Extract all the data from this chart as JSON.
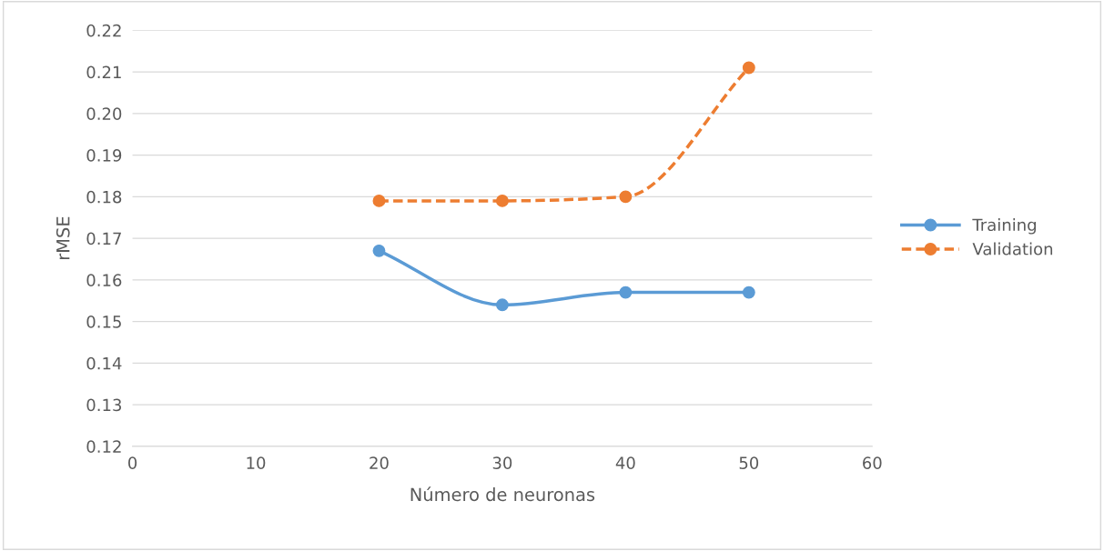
{
  "chart_data": {
    "type": "line",
    "xlabel": "Número de neuronas",
    "ylabel": "rMSE",
    "x": [
      20,
      30,
      40,
      50
    ],
    "series": [
      {
        "name": "Training",
        "color": "#5b9bd5",
        "values": [
          0.167,
          0.154,
          0.157,
          0.157
        ],
        "line_style": "solid"
      },
      {
        "name": "Validation",
        "color": "#ed7d31",
        "values": [
          0.179,
          0.179,
          0.18,
          0.211
        ],
        "line_style": "dashed"
      }
    ],
    "xlim": [
      0,
      60
    ],
    "xticks": [
      0,
      10,
      20,
      30,
      40,
      50,
      60
    ],
    "ylim": [
      0.12,
      0.22
    ],
    "yticks": [
      {
        "value": 0.12,
        "label": "0.12"
      },
      {
        "value": 0.13,
        "label": "0.13"
      },
      {
        "value": 0.14,
        "label": "0.14"
      },
      {
        "value": 0.15,
        "label": "0.15"
      },
      {
        "value": 0.16,
        "label": "0.16"
      },
      {
        "value": 0.17,
        "label": "0.17"
      },
      {
        "value": 0.18,
        "label": "0.18"
      },
      {
        "value": 0.19,
        "label": "0.19"
      },
      {
        "value": 0.2,
        "label": "0.20"
      },
      {
        "value": 0.21,
        "label": "0.21"
      },
      {
        "value": 0.22,
        "label": "0.22"
      }
    ],
    "grid": "y",
    "legend": "right",
    "marker": "circle"
  }
}
